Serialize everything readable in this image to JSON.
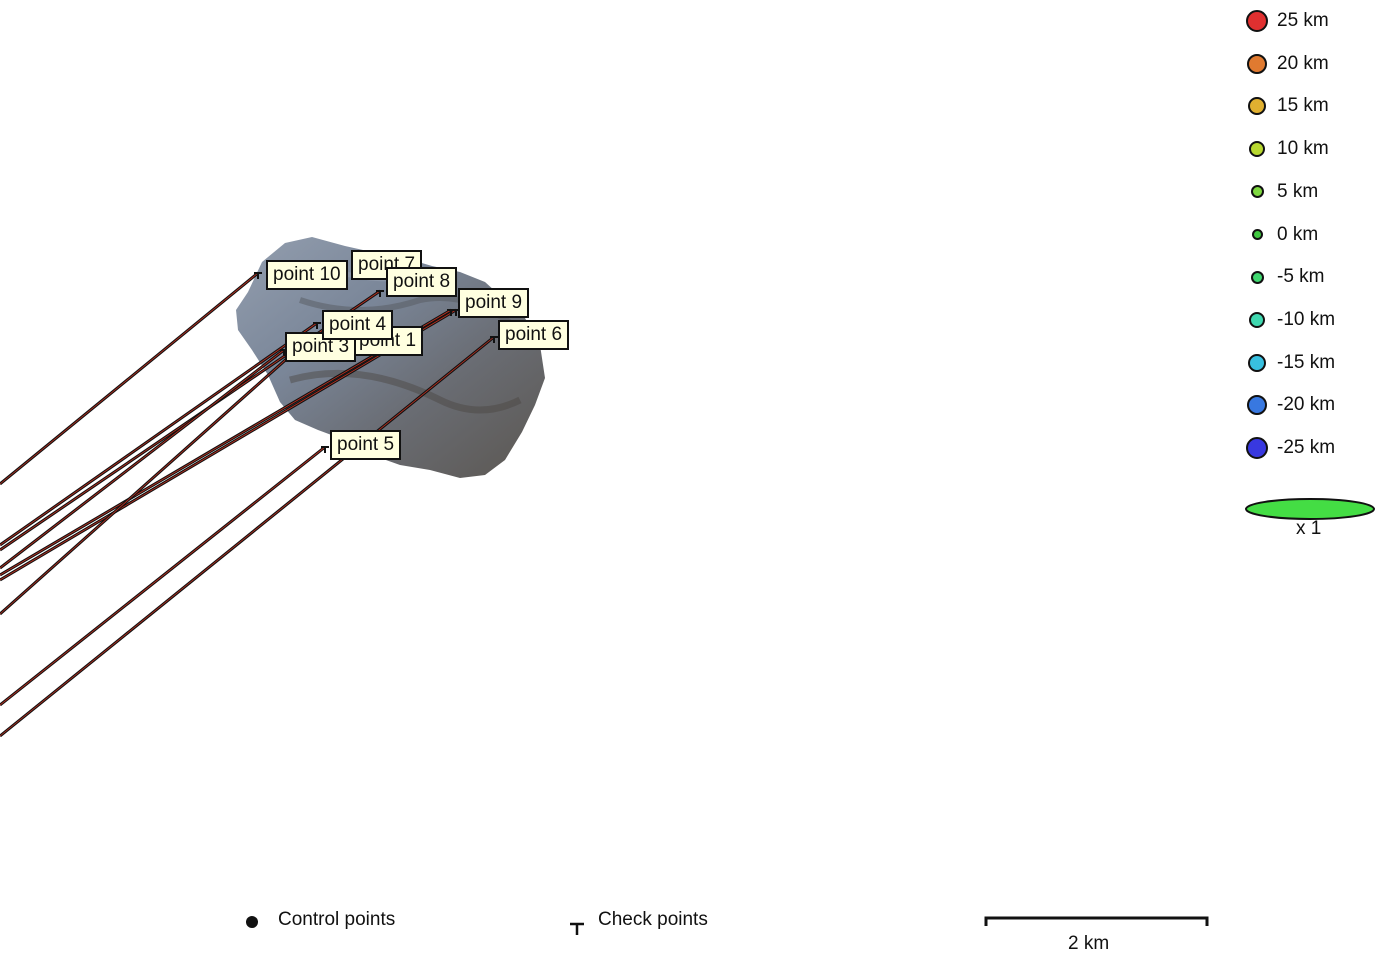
{
  "points": [
    {
      "label": "point 10",
      "type": "check"
    },
    {
      "label": "point 7",
      "type": "check"
    },
    {
      "label": "point 8",
      "type": "check"
    },
    {
      "label": "point 9",
      "type": "check"
    },
    {
      "label": "point 1",
      "type": "check"
    },
    {
      "label": "point 3",
      "type": "check"
    },
    {
      "label": "point 4",
      "type": "check"
    },
    {
      "label": "point 6",
      "type": "check"
    },
    {
      "label": "point 5",
      "type": "check"
    }
  ],
  "legend": {
    "items": [
      {
        "label": "25 km",
        "color": "#e03030"
      },
      {
        "label": "20 km",
        "color": "#e07a30"
      },
      {
        "label": "15 km",
        "color": "#e0b030"
      },
      {
        "label": "10 km",
        "color": "#b8d830"
      },
      {
        "label": "5 km",
        "color": "#7ed840"
      },
      {
        "label": "0 km",
        "color": "#40c840"
      },
      {
        "label": "-5 km",
        "color": "#40d870"
      },
      {
        "label": "-10 km",
        "color": "#40d8b0"
      },
      {
        "label": "-15 km",
        "color": "#38c0e0"
      },
      {
        "label": "-20 km",
        "color": "#3878e0"
      },
      {
        "label": "-25 km",
        "color": "#3838e0"
      }
    ],
    "ellipse_label": "x 1",
    "ellipse_color": "#44dd44"
  },
  "footer": {
    "control_label": "Control points",
    "check_label": "Check points",
    "scale_label": "2 km"
  }
}
